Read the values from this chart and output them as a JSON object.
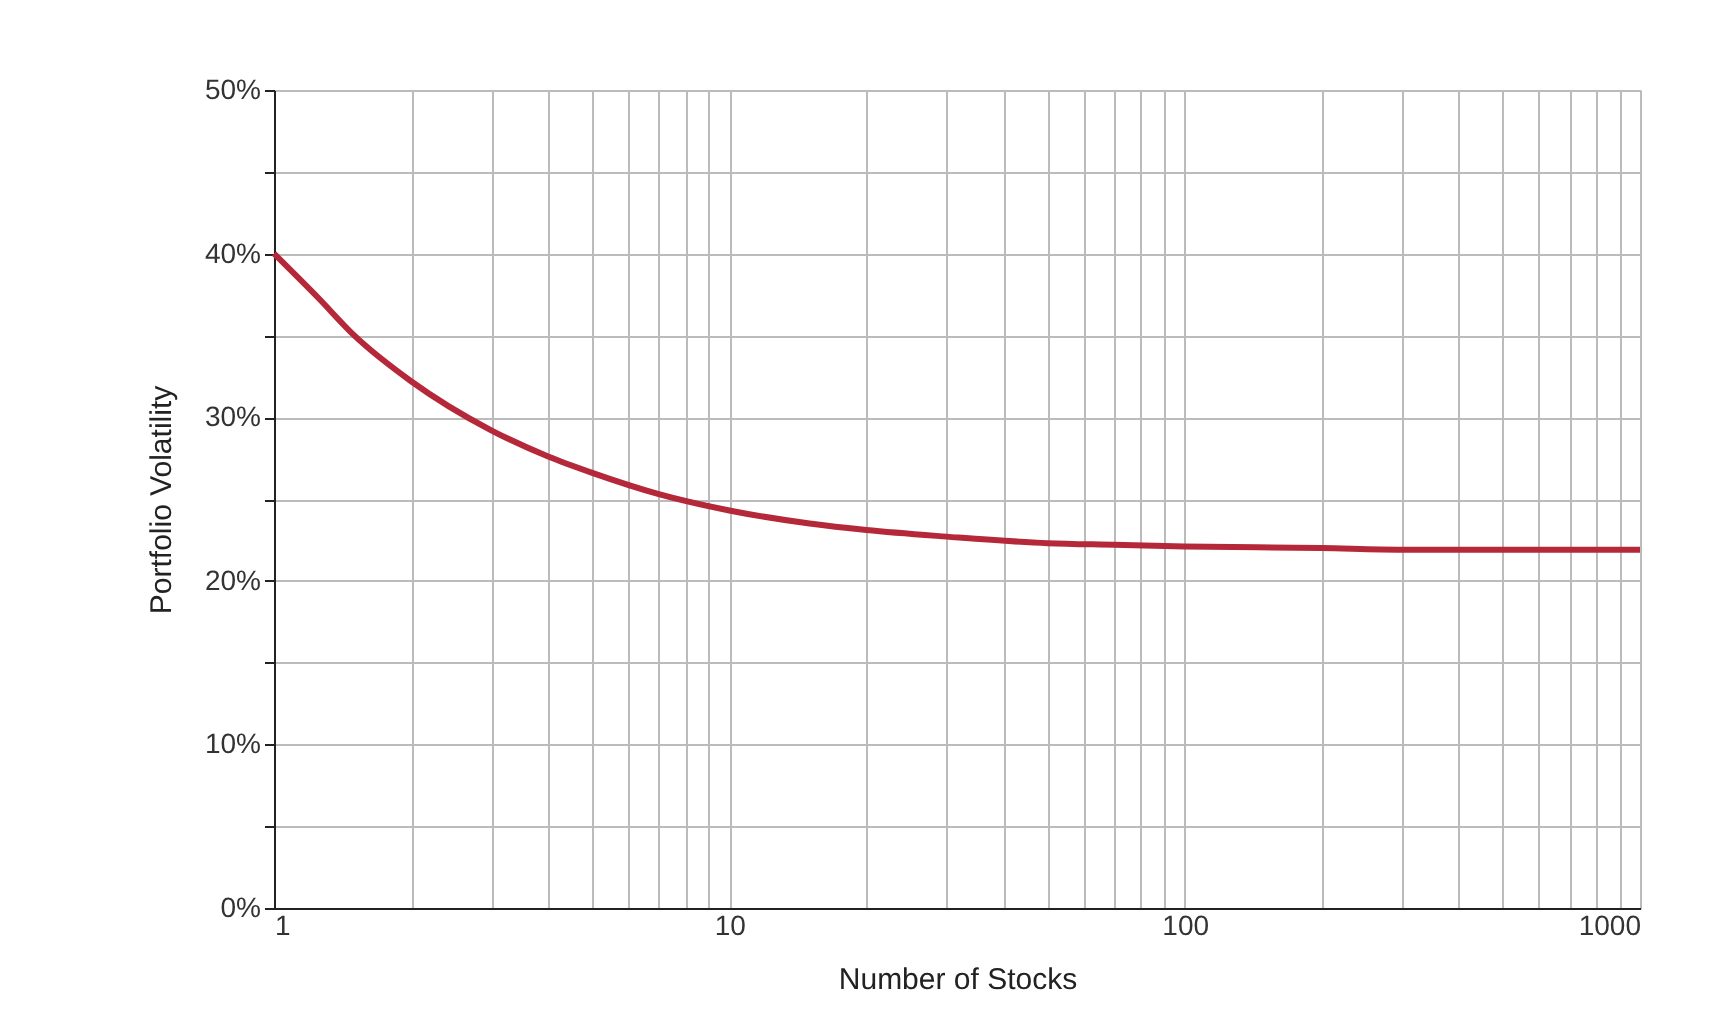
{
  "chart_data": {
    "type": "line",
    "xlabel": "Number of Stocks",
    "ylabel": "Portfolio Volatility",
    "x": [
      1,
      1.25,
      1.5,
      2,
      3,
      4,
      5,
      7,
      10,
      15,
      20,
      30,
      50,
      70,
      100,
      200,
      300,
      500,
      1000
    ],
    "series": [
      {
        "color": "#b5283a",
        "values": [
          40,
          37.3,
          35.0,
          32.2,
          29.2,
          27.6,
          26.6,
          25.3,
          24.3,
          23.5,
          23.1,
          22.7,
          22.3,
          22.2,
          22.1,
          22.0,
          21.9,
          21.9,
          21.9
        ]
      }
    ],
    "log": "x",
    "xlim": [
      1,
      1000
    ],
    "ylim": [
      0,
      50
    ],
    "xticks": [
      1,
      {
        "value": 2,
        "label": null
      },
      {
        "value": 3,
        "label": null
      },
      {
        "value": 4,
        "label": null
      },
      {
        "value": 5,
        "label": null
      },
      {
        "value": 6,
        "label": null
      },
      {
        "value": 7,
        "label": null
      },
      {
        "value": 8,
        "label": null
      },
      {
        "value": 9,
        "label": null
      },
      10,
      {
        "value": 20,
        "label": null
      },
      {
        "value": 30,
        "label": null
      },
      {
        "value": 40,
        "label": null
      },
      {
        "value": 50,
        "label": null
      },
      {
        "value": 60,
        "label": null
      },
      {
        "value": 70,
        "label": null
      },
      {
        "value": 80,
        "label": null
      },
      {
        "value": 90,
        "label": null
      },
      100,
      {
        "value": 200,
        "label": null
      },
      {
        "value": 300,
        "label": null
      },
      {
        "value": 400,
        "label": null
      },
      {
        "value": 500,
        "label": null
      },
      {
        "value": 600,
        "label": null
      },
      {
        "value": 700,
        "label": null
      },
      {
        "value": 800,
        "label": null
      },
      {
        "value": 900,
        "label": null
      },
      1000
    ],
    "yticks": [
      {
        "value": 0,
        "label": "0%"
      },
      {
        "value": 5,
        "label": null
      },
      {
        "value": 10,
        "label": "10%"
      },
      {
        "value": 15,
        "label": null
      },
      {
        "value": 20,
        "label": "20%"
      },
      {
        "value": 25,
        "label": null
      },
      {
        "value": 30,
        "label": "30%"
      },
      {
        "value": 35,
        "label": null
      },
      {
        "value": 40,
        "label": "40%"
      },
      {
        "value": 45,
        "label": null
      },
      {
        "value": 50,
        "label": "50%"
      }
    ],
    "grid": true,
    "marker": "none",
    "line_style": "solid"
  }
}
